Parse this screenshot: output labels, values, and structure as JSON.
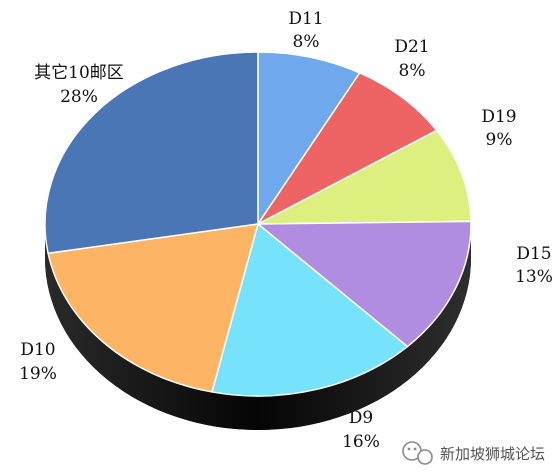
{
  "chart_data": {
    "type": "pie",
    "title": "",
    "slices": [
      {
        "label": "D11",
        "pct_label": "8%",
        "value": 8,
        "color": "#6fa8ec"
      },
      {
        "label": "D21",
        "pct_label": "8%",
        "value": 8,
        "color": "#ee6464"
      },
      {
        "label": "D19",
        "pct_label": "9%",
        "value": 9,
        "color": "#ddf07f"
      },
      {
        "label": "D15",
        "pct_label": "13%",
        "value": 13,
        "color": "#b08de0"
      },
      {
        "label": "D9",
        "pct_label": "16%",
        "value": 16,
        "color": "#76e2fb"
      },
      {
        "label": "D10",
        "pct_label": "19%",
        "value": 19,
        "color": "#fdb565"
      },
      {
        "label": "其它10邮区",
        "pct_label": "28%",
        "value": 28,
        "color": "#4a76b5"
      }
    ],
    "legend": "none",
    "style": "3d-tilted"
  },
  "watermark": {
    "text": "新加坡狮城论坛",
    "icon": "wechat-icon"
  }
}
